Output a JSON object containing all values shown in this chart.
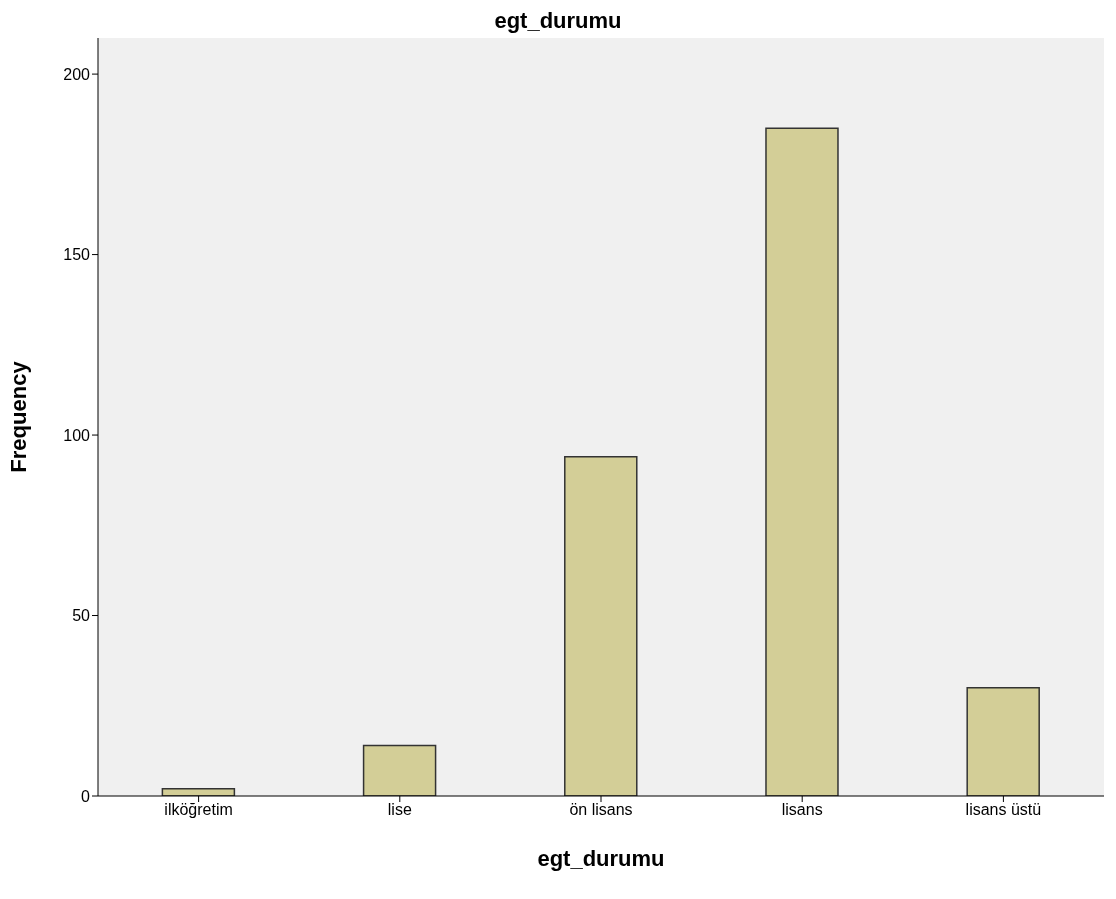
{
  "chart_data": {
    "type": "bar",
    "title": "egt_durumu",
    "xlabel": "egt_durumu",
    "ylabel": "Frequency",
    "categories": [
      "ilköğretim",
      "lise",
      "ön lisans",
      "lisans",
      "lisans üstü"
    ],
    "values": [
      2,
      14,
      94,
      185,
      30
    ],
    "color": "#d3ce97",
    "ylim": [
      0,
      210
    ],
    "yticks": [
      0,
      50,
      100,
      150,
      200
    ],
    "grid": false,
    "legend": false
  }
}
